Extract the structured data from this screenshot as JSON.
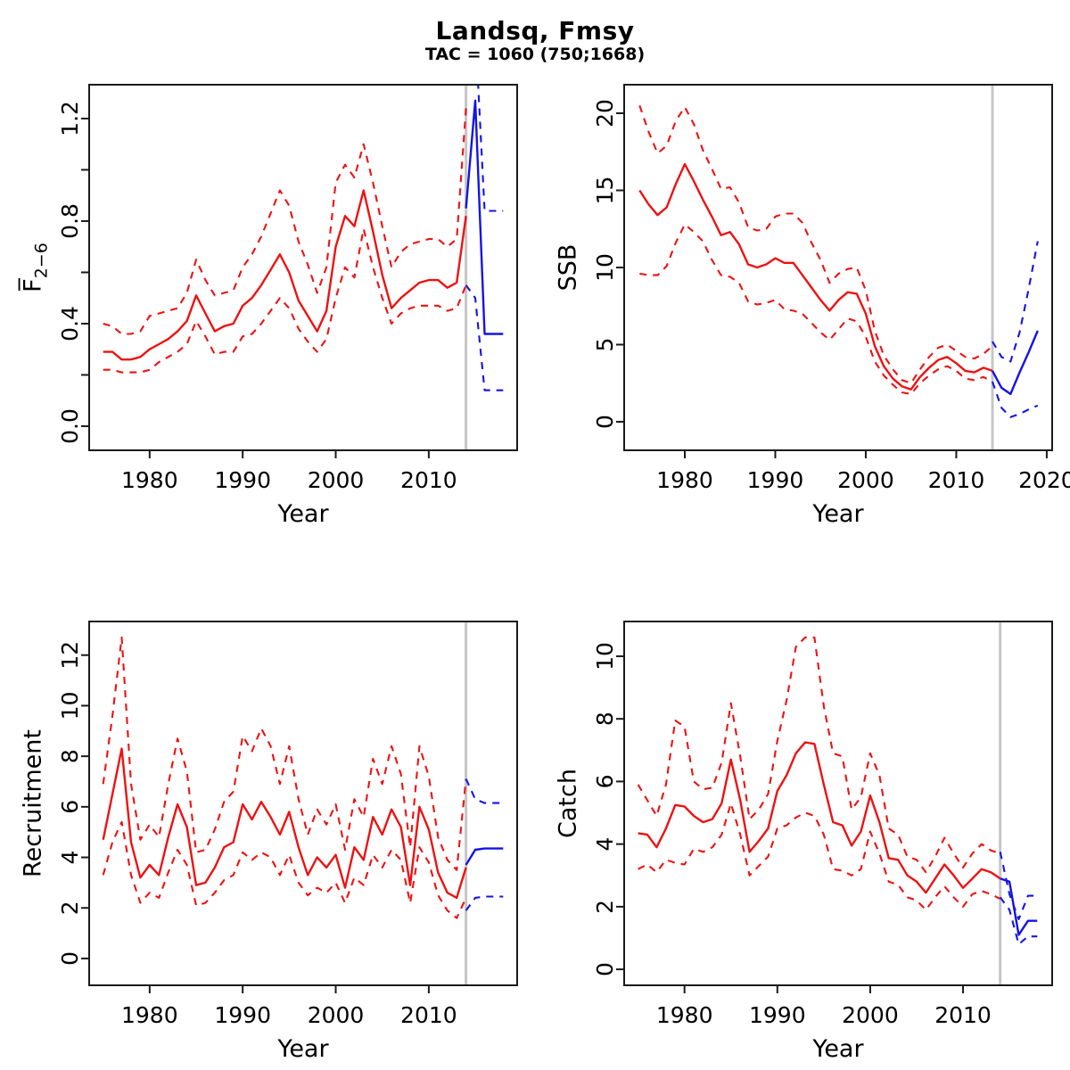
{
  "title": "Landsq, Fmsy",
  "subtitle": "TAC = 1060 (750;1668)",
  "colors": {
    "historical": "#ee1111",
    "projection": "#1414e6",
    "divider": "#c6c6c6",
    "axis": "#1a1a1a",
    "background": "#ffffff"
  },
  "chart_data": [
    {
      "id": "fbar",
      "type": "line",
      "axes": {
        "xlabel": "Year",
        "ylabel": "F̅",
        "ylabel_sub": "2−6",
        "xlim": [
          1973.5,
          2019.5
        ],
        "ylim": [
          -0.094,
          1.332
        ],
        "x_ticks": [
          1980,
          1990,
          2000,
          2010
        ],
        "y_ticks": [
          0.0,
          0.4,
          0.8,
          1.2
        ],
        "y_tick_labels": [
          "0.0",
          "0.4",
          "0.8",
          "1.2"
        ],
        "y_minor_ticks": [
          0.2,
          0.6,
          1.0
        ],
        "grid": false
      },
      "vline_x": 2014,
      "series": [
        {
          "name": "ci-upper-historical",
          "role": "upper",
          "dashed": true,
          "color": "#ee1111",
          "x_start": 1975,
          "values": [
            0.4,
            0.39,
            0.36,
            0.36,
            0.37,
            0.43,
            0.44,
            0.45,
            0.46,
            0.52,
            0.65,
            0.57,
            0.51,
            0.52,
            0.53,
            0.62,
            0.67,
            0.74,
            0.83,
            0.92,
            0.86,
            0.72,
            0.63,
            0.52,
            0.62,
            0.95,
            1.02,
            0.97,
            1.1,
            0.95,
            0.78,
            0.62,
            0.68,
            0.71,
            0.72,
            0.73,
            0.73,
            0.7,
            0.73,
            1.24
          ]
        },
        {
          "name": "ci-lower-historical",
          "role": "lower",
          "dashed": true,
          "color": "#ee1111",
          "x_start": 1975,
          "values": [
            0.22,
            0.22,
            0.21,
            0.21,
            0.21,
            0.22,
            0.25,
            0.27,
            0.29,
            0.32,
            0.41,
            0.35,
            0.28,
            0.29,
            0.29,
            0.35,
            0.36,
            0.4,
            0.45,
            0.5,
            0.46,
            0.38,
            0.33,
            0.29,
            0.34,
            0.5,
            0.62,
            0.58,
            0.77,
            0.62,
            0.5,
            0.4,
            0.44,
            0.46,
            0.47,
            0.47,
            0.47,
            0.45,
            0.46,
            0.55
          ]
        },
        {
          "name": "median-historical",
          "role": "median",
          "dashed": false,
          "color": "#ee1111",
          "x_start": 1975,
          "values": [
            0.29,
            0.29,
            0.26,
            0.26,
            0.27,
            0.3,
            0.32,
            0.34,
            0.37,
            0.41,
            0.51,
            0.44,
            0.37,
            0.39,
            0.4,
            0.47,
            0.5,
            0.55,
            0.61,
            0.67,
            0.6,
            0.49,
            0.43,
            0.37,
            0.45,
            0.7,
            0.82,
            0.78,
            0.92,
            0.76,
            0.59,
            0.46,
            0.5,
            0.53,
            0.56,
            0.57,
            0.57,
            0.54,
            0.56,
            0.82
          ]
        },
        {
          "name": "ci-upper-projection",
          "role": "upper",
          "dashed": true,
          "color": "#1414e6",
          "x_start": 2014,
          "values": [
            1.45,
            1.55,
            0.84,
            0.84,
            0.84
          ]
        },
        {
          "name": "ci-lower-projection",
          "role": "lower",
          "dashed": true,
          "color": "#1414e6",
          "x_start": 2014,
          "values": [
            0.55,
            0.5,
            0.14,
            0.14,
            0.14
          ]
        },
        {
          "name": "median-projection",
          "role": "median",
          "dashed": false,
          "color": "#1414e6",
          "x_start": 2014,
          "values": [
            0.85,
            1.27,
            0.36,
            0.36,
            0.36
          ]
        }
      ]
    },
    {
      "id": "ssb",
      "type": "line",
      "axes": {
        "xlabel": "Year",
        "ylabel": "SSB",
        "xlim": [
          1973.3,
          2020.6
        ],
        "ylim": [
          -1.85,
          21.85
        ],
        "x_ticks": [
          1980,
          1990,
          2000,
          2010,
          2020
        ],
        "y_ticks": [
          0,
          5,
          10,
          15,
          20
        ],
        "y_tick_labels": [
          "0",
          "5",
          "10",
          "15",
          "20"
        ],
        "y_minor_ticks": [],
        "grid": false
      },
      "vline_x": 2014,
      "series": [
        {
          "name": "ci-upper-historical",
          "role": "upper",
          "dashed": true,
          "color": "#ee1111",
          "x_start": 1975,
          "values": [
            20.5,
            18.8,
            17.4,
            17.9,
            19.5,
            20.4,
            19.3,
            17.6,
            16.4,
            15.1,
            15.2,
            14.2,
            12.6,
            12.4,
            12.5,
            13.3,
            13.5,
            13.5,
            12.9,
            11.6,
            10.5,
            9.0,
            9.6,
            9.9,
            10.0,
            8.5,
            5.9,
            4.3,
            3.4,
            2.7,
            2.5,
            3.4,
            4.2,
            4.8,
            5.0,
            4.6,
            4.2,
            4.1,
            4.4,
            4.9
          ]
        },
        {
          "name": "ci-lower-historical",
          "role": "lower",
          "dashed": true,
          "color": "#ee1111",
          "x_start": 1975,
          "values": [
            9.6,
            9.5,
            9.5,
            10.1,
            11.6,
            12.8,
            12.3,
            11.7,
            10.5,
            9.5,
            9.4,
            9.0,
            7.8,
            7.6,
            7.7,
            7.9,
            7.3,
            7.2,
            7.0,
            6.4,
            5.8,
            5.3,
            6.0,
            6.7,
            6.5,
            5.5,
            3.9,
            3.0,
            2.4,
            1.9,
            1.8,
            2.5,
            3.0,
            3.4,
            3.6,
            3.3,
            2.8,
            2.7,
            2.9,
            2.6
          ]
        },
        {
          "name": "median-historical",
          "role": "median",
          "dashed": false,
          "color": "#ee1111",
          "x_start": 1975,
          "values": [
            15.0,
            14.1,
            13.4,
            13.9,
            15.4,
            16.7,
            15.6,
            14.4,
            13.3,
            12.1,
            12.3,
            11.5,
            10.2,
            10.0,
            10.2,
            10.6,
            10.3,
            10.3,
            9.5,
            8.7,
            7.9,
            7.2,
            7.9,
            8.4,
            8.3,
            7.0,
            4.9,
            3.6,
            2.8,
            2.3,
            2.1,
            2.9,
            3.5,
            4.0,
            4.2,
            3.8,
            3.3,
            3.2,
            3.5,
            3.3
          ]
        },
        {
          "name": "ci-upper-projection",
          "role": "upper",
          "dashed": true,
          "color": "#1414e6",
          "x_start": 2014,
          "values": [
            5.2,
            4.2,
            3.9,
            5.8,
            8.6,
            11.7
          ]
        },
        {
          "name": "ci-lower-projection",
          "role": "lower",
          "dashed": true,
          "color": "#1414e6",
          "x_start": 2014,
          "values": [
            2.6,
            0.9,
            0.3,
            0.5,
            0.8,
            1.05
          ]
        },
        {
          "name": "median-projection",
          "role": "median",
          "dashed": false,
          "color": "#1414e6",
          "x_start": 2014,
          "values": [
            3.3,
            2.2,
            1.8,
            3.2,
            4.5,
            5.9
          ]
        }
      ]
    },
    {
      "id": "recruitment",
      "type": "line",
      "axes": {
        "xlabel": "Year",
        "ylabel": "Recruitment",
        "xlim": [
          1973.5,
          2019.5
        ],
        "ylim": [
          -1.06,
          13.33
        ],
        "x_ticks": [
          1980,
          1990,
          2000,
          2010
        ],
        "y_ticks": [
          0,
          2,
          4,
          6,
          8,
          10,
          12
        ],
        "y_tick_labels": [
          "0",
          "2",
          "4",
          "6",
          "8",
          "10",
          "12"
        ],
        "y_minor_ticks": [],
        "grid": false
      },
      "vline_x": 2014,
      "series": [
        {
          "name": "ci-upper-historical",
          "role": "upper",
          "dashed": true,
          "color": "#ee1111",
          "x_start": 1975,
          "values": [
            6.9,
            9.6,
            12.7,
            6.9,
            4.7,
            5.3,
            4.8,
            6.9,
            8.7,
            7.4,
            4.2,
            4.3,
            5.1,
            6.2,
            6.6,
            8.8,
            8.2,
            9.1,
            8.4,
            6.9,
            8.4,
            6.3,
            4.9,
            5.9,
            5.3,
            6.1,
            4.3,
            6.3,
            5.6,
            7.9,
            6.9,
            8.4,
            7.3,
            4.4,
            8.4,
            7.2,
            4.8,
            3.9,
            3.5,
            7.1
          ]
        },
        {
          "name": "ci-lower-historical",
          "role": "lower",
          "dashed": true,
          "color": "#ee1111",
          "x_start": 1975,
          "values": [
            3.3,
            4.6,
            5.4,
            3.3,
            2.2,
            2.6,
            2.4,
            3.4,
            4.3,
            3.7,
            2.1,
            2.2,
            2.6,
            3.1,
            3.3,
            4.2,
            3.9,
            4.2,
            4.0,
            3.3,
            4.1,
            3.0,
            2.5,
            2.8,
            2.6,
            3.0,
            2.2,
            3.2,
            2.9,
            4.1,
            3.6,
            4.3,
            3.9,
            2.2,
            4.4,
            3.8,
            2.5,
            1.9,
            1.6,
            2.4
          ]
        },
        {
          "name": "median-historical",
          "role": "median",
          "dashed": false,
          "color": "#ee1111",
          "x_start": 1975,
          "values": [
            4.7,
            6.5,
            8.3,
            4.6,
            3.2,
            3.7,
            3.3,
            4.8,
            6.1,
            5.2,
            2.9,
            3.0,
            3.6,
            4.4,
            4.6,
            6.1,
            5.5,
            6.2,
            5.6,
            4.9,
            5.8,
            4.4,
            3.3,
            4.0,
            3.6,
            4.1,
            2.8,
            4.4,
            3.9,
            5.6,
            4.9,
            5.9,
            5.2,
            2.9,
            6.0,
            5.1,
            3.4,
            2.6,
            2.4,
            3.6
          ]
        },
        {
          "name": "ci-upper-projection",
          "role": "upper",
          "dashed": true,
          "color": "#1414e6",
          "x_start": 2014,
          "values": [
            7.1,
            6.3,
            6.15,
            6.15,
            6.15
          ]
        },
        {
          "name": "ci-lower-projection",
          "role": "lower",
          "dashed": true,
          "color": "#1414e6",
          "x_start": 2014,
          "values": [
            1.9,
            2.4,
            2.45,
            2.45,
            2.45
          ]
        },
        {
          "name": "median-projection",
          "role": "median",
          "dashed": false,
          "color": "#1414e6",
          "x_start": 2014,
          "values": [
            3.7,
            4.3,
            4.35,
            4.35,
            4.35
          ]
        }
      ]
    },
    {
      "id": "catch",
      "type": "line",
      "axes": {
        "xlabel": "Year",
        "ylabel": "Catch",
        "xlim": [
          1973.5,
          2019.6
        ],
        "ylim": [
          -0.51,
          11.11
        ],
        "x_ticks": [
          1980,
          1990,
          2000,
          2010
        ],
        "y_ticks": [
          0,
          2,
          4,
          6,
          8,
          10
        ],
        "y_tick_labels": [
          "0",
          "2",
          "4",
          "6",
          "8",
          "10"
        ],
        "y_minor_ticks": [],
        "grid": false
      },
      "vline_x": 2014,
      "series": [
        {
          "name": "ci-upper-historical",
          "role": "upper",
          "dashed": true,
          "color": "#ee1111",
          "x_start": 1975,
          "values": [
            5.9,
            5.4,
            4.9,
            5.9,
            7.95,
            7.75,
            6.0,
            5.75,
            5.8,
            6.6,
            8.5,
            6.8,
            4.8,
            5.1,
            5.6,
            7.3,
            8.6,
            10.3,
            10.6,
            10.6,
            8.4,
            6.9,
            6.8,
            5.1,
            5.5,
            6.9,
            6.2,
            4.5,
            4.3,
            3.6,
            3.5,
            3.1,
            3.6,
            4.2,
            3.7,
            3.25,
            3.7,
            4.0,
            3.8,
            3.7
          ]
        },
        {
          "name": "ci-lower-historical",
          "role": "lower",
          "dashed": true,
          "color": "#ee1111",
          "x_start": 1975,
          "values": [
            3.2,
            3.35,
            3.1,
            3.5,
            3.4,
            3.35,
            3.85,
            3.75,
            3.9,
            4.3,
            5.3,
            4.3,
            3.0,
            3.3,
            3.6,
            4.5,
            4.6,
            4.85,
            5.0,
            4.9,
            4.3,
            3.2,
            3.15,
            3.0,
            3.2,
            4.4,
            3.7,
            2.8,
            2.7,
            2.3,
            2.2,
            1.9,
            2.3,
            2.65,
            2.3,
            2.0,
            2.4,
            2.5,
            2.4,
            2.25
          ]
        },
        {
          "name": "median-historical",
          "role": "median",
          "dashed": false,
          "color": "#ee1111",
          "x_start": 1975,
          "values": [
            4.35,
            4.3,
            3.9,
            4.5,
            5.25,
            5.2,
            4.9,
            4.7,
            4.8,
            5.3,
            6.7,
            5.4,
            3.75,
            4.1,
            4.5,
            5.7,
            6.2,
            6.9,
            7.25,
            7.2,
            5.9,
            4.7,
            4.6,
            3.95,
            4.4,
            5.55,
            4.7,
            3.55,
            3.5,
            3.0,
            2.8,
            2.45,
            2.9,
            3.35,
            3.0,
            2.6,
            2.9,
            3.2,
            3.1,
            2.9
          ]
        },
        {
          "name": "ci-upper-projection",
          "role": "upper",
          "dashed": true,
          "color": "#1414e6",
          "x_start": 2014,
          "values": [
            3.75,
            2.4,
            1.6,
            2.35,
            2.35
          ]
        },
        {
          "name": "ci-lower-projection",
          "role": "lower",
          "dashed": true,
          "color": "#1414e6",
          "x_start": 2014,
          "values": [
            2.3,
            1.9,
            0.8,
            1.05,
            1.05
          ]
        },
        {
          "name": "median-projection",
          "role": "median",
          "dashed": false,
          "color": "#1414e6",
          "x_start": 2014,
          "values": [
            2.9,
            2.8,
            1.1,
            1.55,
            1.55
          ]
        }
      ]
    }
  ]
}
